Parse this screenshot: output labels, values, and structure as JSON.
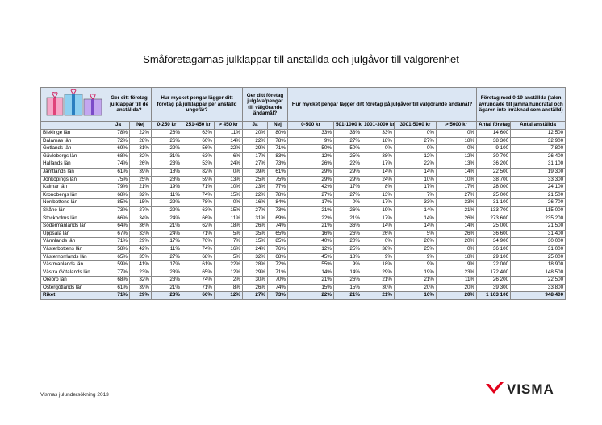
{
  "title": "Småföretagarnas julklappar till anställda och julgåvor till välgörenhet",
  "table": {
    "groups": [
      "Ger ditt företag julklappar till de anställda?",
      "Hur mycket pengar lägger ditt företag på julklappar per anställd ungefär?",
      "Ger ditt företag julgåva/pengar till välgörande ändamål?",
      "Hur mycket pengar lägger ditt företag på julgåvor till välgörande ändamål?",
      "Företag med 0-19 anställda (talen avrundade till jämna hundratal och ägaren inte inräknad som anställd)"
    ],
    "subheaders": [
      "Ja",
      "Nej",
      "0-250 kr",
      "251-450 kr",
      "> 450 kr",
      "Ja",
      "Nej",
      "0-500 kr",
      "501-1000 kr",
      "1001-3000 kr",
      "3001-5000 kr",
      "> 5000 kr",
      "Antal företag",
      "Antal anställda"
    ],
    "rows": [
      [
        "Blekinge län",
        "78%",
        "22%",
        "26%",
        "63%",
        "11%",
        "20%",
        "80%",
        "33%",
        "33%",
        "33%",
        "0%",
        "0%",
        "14 600",
        "12 500"
      ],
      [
        "Dalarnas län",
        "72%",
        "28%",
        "26%",
        "60%",
        "14%",
        "22%",
        "78%",
        "9%",
        "27%",
        "18%",
        "27%",
        "18%",
        "38 300",
        "32 900"
      ],
      [
        "Gotlands län",
        "69%",
        "31%",
        "22%",
        "56%",
        "22%",
        "29%",
        "71%",
        "50%",
        "50%",
        "0%",
        "0%",
        "0%",
        "9 100",
        "7 800"
      ],
      [
        "Gävleborgs län",
        "68%",
        "32%",
        "31%",
        "63%",
        "6%",
        "17%",
        "83%",
        "12%",
        "25%",
        "38%",
        "12%",
        "12%",
        "30 700",
        "26 400"
      ],
      [
        "Hallands län",
        "74%",
        "26%",
        "23%",
        "53%",
        "24%",
        "27%",
        "73%",
        "26%",
        "22%",
        "17%",
        "22%",
        "13%",
        "36 200",
        "31 100"
      ],
      [
        "Jämtlands län",
        "61%",
        "39%",
        "18%",
        "82%",
        "0%",
        "39%",
        "61%",
        "29%",
        "29%",
        "14%",
        "14%",
        "14%",
        "22 500",
        "19 300"
      ],
      [
        "Jönköpings län",
        "75%",
        "25%",
        "28%",
        "59%",
        "13%",
        "25%",
        "75%",
        "29%",
        "29%",
        "24%",
        "10%",
        "10%",
        "38 700",
        "33 300"
      ],
      [
        "Kalmar län",
        "79%",
        "21%",
        "19%",
        "71%",
        "10%",
        "23%",
        "77%",
        "42%",
        "17%",
        "8%",
        "17%",
        "17%",
        "28 000",
        "24 100"
      ],
      [
        "Kronobergs län",
        "68%",
        "32%",
        "11%",
        "74%",
        "15%",
        "22%",
        "78%",
        "27%",
        "27%",
        "13%",
        "7%",
        "27%",
        "25 000",
        "21 500"
      ],
      [
        "Norrbottens län",
        "85%",
        "15%",
        "22%",
        "78%",
        "0%",
        "16%",
        "84%",
        "17%",
        "0%",
        "17%",
        "33%",
        "33%",
        "31 100",
        "26 700"
      ],
      [
        "Skåne län",
        "73%",
        "27%",
        "22%",
        "63%",
        "15%",
        "27%",
        "73%",
        "21%",
        "26%",
        "19%",
        "14%",
        "21%",
        "133 700",
        "115 000"
      ],
      [
        "Stockholms län",
        "66%",
        "34%",
        "24%",
        "66%",
        "11%",
        "31%",
        "69%",
        "22%",
        "21%",
        "17%",
        "14%",
        "26%",
        "273 600",
        "235 200"
      ],
      [
        "Södermanlands län",
        "64%",
        "36%",
        "21%",
        "62%",
        "18%",
        "26%",
        "74%",
        "21%",
        "36%",
        "14%",
        "14%",
        "14%",
        "25 000",
        "21 500"
      ],
      [
        "Uppsala län",
        "67%",
        "33%",
        "24%",
        "71%",
        "5%",
        "35%",
        "65%",
        "16%",
        "26%",
        "26%",
        "5%",
        "26%",
        "36 600",
        "31 400"
      ],
      [
        "Värmlands län",
        "71%",
        "29%",
        "17%",
        "76%",
        "7%",
        "15%",
        "85%",
        "40%",
        "20%",
        "0%",
        "20%",
        "20%",
        "34 900",
        "30 000"
      ],
      [
        "Västerbottens län",
        "58%",
        "42%",
        "11%",
        "74%",
        "16%",
        "24%",
        "76%",
        "12%",
        "25%",
        "38%",
        "25%",
        "0%",
        "36 100",
        "31 000"
      ],
      [
        "Västernorrlands län",
        "65%",
        "35%",
        "27%",
        "68%",
        "5%",
        "32%",
        "68%",
        "45%",
        "18%",
        "9%",
        "9%",
        "18%",
        "29 100",
        "25 000"
      ],
      [
        "Västmanlands län",
        "59%",
        "41%",
        "17%",
        "61%",
        "22%",
        "28%",
        "72%",
        "55%",
        "9%",
        "18%",
        "9%",
        "9%",
        "22 000",
        "18 900"
      ],
      [
        "Västra Götalands län",
        "77%",
        "23%",
        "23%",
        "65%",
        "12%",
        "29%",
        "71%",
        "14%",
        "14%",
        "29%",
        "19%",
        "23%",
        "172 400",
        "148 500"
      ],
      [
        "Örebro län",
        "68%",
        "32%",
        "23%",
        "74%",
        "2%",
        "30%",
        "70%",
        "21%",
        "26%",
        "21%",
        "21%",
        "11%",
        "26 200",
        "22 500"
      ],
      [
        "Östergötlands län",
        "61%",
        "39%",
        "21%",
        "71%",
        "8%",
        "26%",
        "74%",
        "15%",
        "15%",
        "30%",
        "20%",
        "20%",
        "39 300",
        "33 800"
      ],
      [
        "Riket",
        "71%",
        "29%",
        "23%",
        "66%",
        "12%",
        "27%",
        "73%",
        "22%",
        "21%",
        "21%",
        "16%",
        "20%",
        "1 103 100",
        "948 400"
      ]
    ]
  },
  "footer": "Vismas julundersökning 2013",
  "logo": "VISMA"
}
